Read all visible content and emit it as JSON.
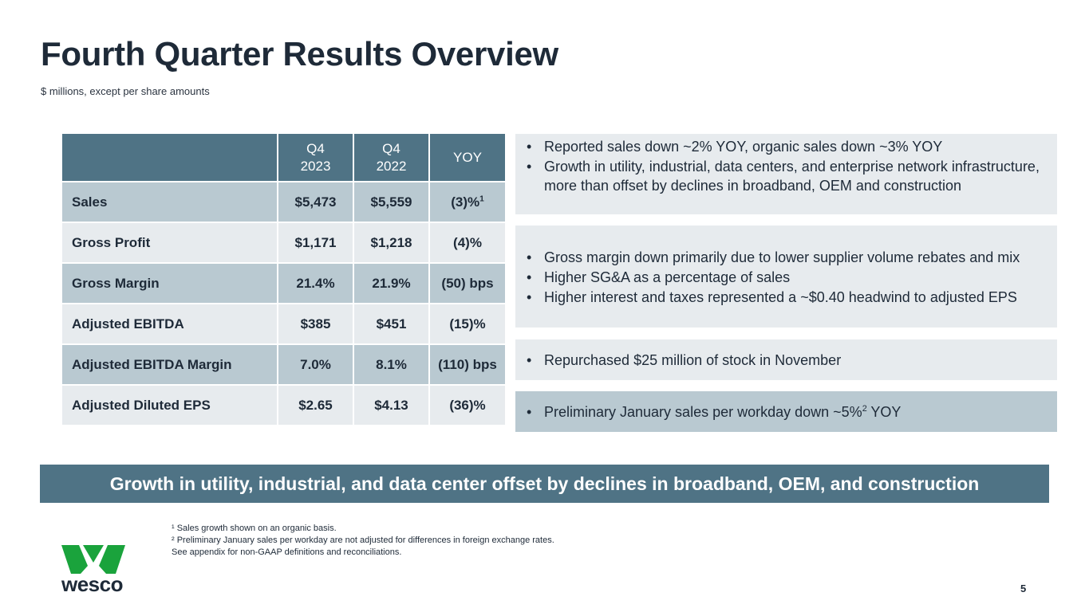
{
  "header": {
    "title": "Fourth Quarter Results Overview",
    "subtitle": "$ millions, except per share amounts"
  },
  "table": {
    "columns": [
      {
        "line1": "Q4",
        "line2": "2023"
      },
      {
        "line1": "Q4",
        "line2": "2022"
      },
      {
        "line1": "YOY",
        "line2": ""
      }
    ],
    "rows": [
      {
        "label": "Sales",
        "q4_2023": "$5,473",
        "q4_2022": "$5,559",
        "yoy": "(3)%",
        "yoy_sup": "1"
      },
      {
        "label": "Gross Profit",
        "q4_2023": "$1,171",
        "q4_2022": "$1,218",
        "yoy": "(4)%",
        "yoy_sup": ""
      },
      {
        "label": "Gross Margin",
        "q4_2023": "21.4%",
        "q4_2022": "21.9%",
        "yoy": "(50) bps",
        "yoy_sup": ""
      },
      {
        "label": "Adjusted EBITDA",
        "q4_2023": "$385",
        "q4_2022": "$451",
        "yoy": "(15)%",
        "yoy_sup": ""
      },
      {
        "label": "Adjusted EBITDA Margin",
        "q4_2023": "7.0%",
        "q4_2022": "8.1%",
        "yoy": "(110) bps",
        "yoy_sup": ""
      },
      {
        "label": "Adjusted Diluted EPS",
        "q4_2023": "$2.65",
        "q4_2022": "$4.13",
        "yoy": "(36)%",
        "yoy_sup": ""
      }
    ]
  },
  "highlights": {
    "box1": [
      "Reported sales down ~2% YOY, organic sales down ~3% YOY",
      "Growth in utility, industrial, data centers, and enterprise network infrastructure,  more than offset by declines in broadband, OEM and construction"
    ],
    "box2": [
      "Gross margin down primarily due to lower supplier volume rebates and mix",
      "Higher SG&A as a percentage of sales",
      "Higher interest and taxes represented a ~$0.40 headwind to adjusted EPS"
    ],
    "box3": [
      "Repurchased $25 million of stock in November"
    ],
    "box4": {
      "before": "Preliminary January sales per workday down ~5%",
      "sup": "2",
      "after": " YOY"
    }
  },
  "banner": "Growth in utility, industrial, and data center offset by declines in broadband, OEM, and construction",
  "footnotes": {
    "note1": "¹ Sales growth shown on an organic basis.",
    "note2": "² Preliminary January sales per workday are not adjusted for differences in foreign exchange rates.",
    "note3": "See appendix for non-GAAP definitions and reconciliations."
  },
  "logo": {
    "text": "wesco",
    "mark_color": "#1aa33c"
  },
  "bullet_char": "•",
  "page_number": "5"
}
